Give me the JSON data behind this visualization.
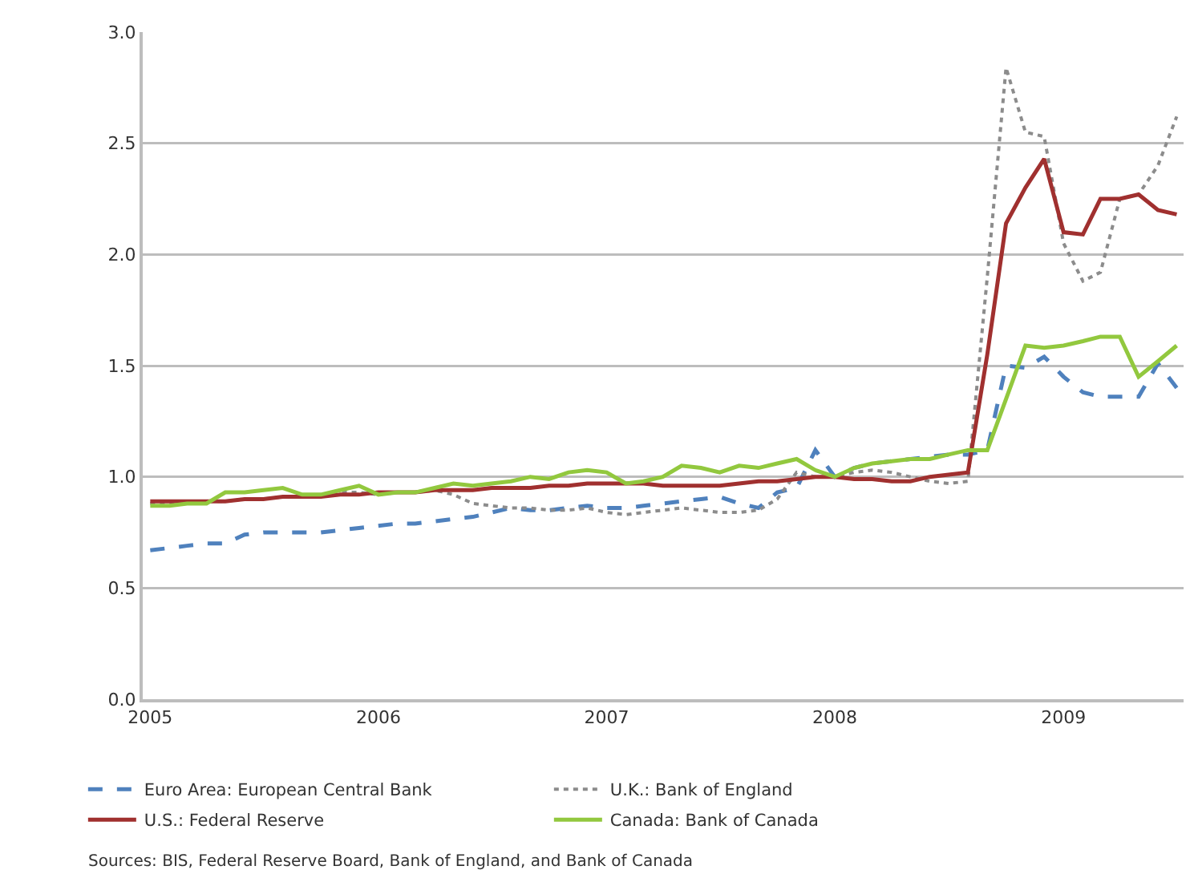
{
  "chart_data": {
    "type": "line",
    "x": [
      "2005-01",
      "2005-02",
      "2005-03",
      "2005-04",
      "2005-05",
      "2005-06",
      "2005-07",
      "2005-08",
      "2005-09",
      "2005-10",
      "2005-11",
      "2005-12",
      "2006-01",
      "2006-02",
      "2006-03",
      "2006-04",
      "2006-05",
      "2006-06",
      "2006-07",
      "2006-08",
      "2006-09",
      "2006-10",
      "2006-11",
      "2006-12",
      "2007-01",
      "2007-02",
      "2007-03",
      "2007-04",
      "2007-05",
      "2007-06",
      "2007-07",
      "2007-08",
      "2007-09",
      "2007-10",
      "2007-11",
      "2007-12",
      "2008-01",
      "2008-02",
      "2008-03",
      "2008-04",
      "2008-05",
      "2008-06",
      "2008-07",
      "2008-08",
      "2008-09",
      "2008-10",
      "2008-11",
      "2008-12",
      "2009-01",
      "2009-02",
      "2009-03",
      "2009-04",
      "2009-05",
      "2009-06",
      "2009-07"
    ],
    "series": [
      {
        "name": "Euro Area: European Central Bank",
        "color": "#4f81bd",
        "line_style": "dashed",
        "values": [
          0.67,
          0.68,
          0.69,
          0.7,
          0.7,
          0.74,
          0.75,
          0.75,
          0.75,
          0.75,
          0.76,
          0.77,
          0.78,
          0.79,
          0.79,
          0.8,
          0.81,
          0.82,
          0.84,
          0.86,
          0.85,
          0.85,
          0.86,
          0.87,
          0.86,
          0.86,
          0.87,
          0.88,
          0.89,
          0.9,
          0.91,
          0.88,
          0.86,
          0.93,
          0.95,
          1.12,
          1.0,
          1.04,
          1.06,
          1.07,
          1.08,
          1.09,
          1.1,
          1.1,
          1.12,
          1.5,
          1.49,
          1.54,
          1.45,
          1.38,
          1.36,
          1.36,
          1.36,
          1.51,
          1.4
        ]
      },
      {
        "name": "U.K.: Bank of England",
        "color": "#8c8c8c",
        "line_style": "dotted",
        "values": [
          0.88,
          0.88,
          0.88,
          0.89,
          0.89,
          0.9,
          0.9,
          0.91,
          0.91,
          0.92,
          0.93,
          0.93,
          0.92,
          0.93,
          0.93,
          0.94,
          0.92,
          0.88,
          0.87,
          0.86,
          0.86,
          0.85,
          0.85,
          0.86,
          0.84,
          0.83,
          0.84,
          0.85,
          0.86,
          0.85,
          0.84,
          0.84,
          0.85,
          0.9,
          1.02,
          1.0,
          1.0,
          1.02,
          1.03,
          1.02,
          1.0,
          0.98,
          0.97,
          0.98,
          1.9,
          2.84,
          2.55,
          2.53,
          2.05,
          1.88,
          1.92,
          2.25,
          2.27,
          2.4,
          2.62
        ]
      },
      {
        "name": "U.S.: Federal Reserve",
        "color": "#a0302f",
        "line_style": "solid",
        "values": [
          0.89,
          0.89,
          0.89,
          0.89,
          0.89,
          0.9,
          0.9,
          0.91,
          0.91,
          0.91,
          0.92,
          0.92,
          0.93,
          0.93,
          0.93,
          0.94,
          0.94,
          0.94,
          0.95,
          0.95,
          0.95,
          0.96,
          0.96,
          0.97,
          0.97,
          0.97,
          0.97,
          0.96,
          0.96,
          0.96,
          0.96,
          0.97,
          0.98,
          0.98,
          0.99,
          1.0,
          1.0,
          0.99,
          0.99,
          0.98,
          0.98,
          1.0,
          1.01,
          1.02,
          1.55,
          2.14,
          2.3,
          2.43,
          2.1,
          2.09,
          2.25,
          2.25,
          2.27,
          2.2,
          2.18
        ]
      },
      {
        "name": "Canada: Bank of Canada",
        "color": "#92c83e",
        "line_style": "solid",
        "values": [
          0.87,
          0.87,
          0.88,
          0.88,
          0.93,
          0.93,
          0.94,
          0.95,
          0.92,
          0.92,
          0.94,
          0.96,
          0.92,
          0.93,
          0.93,
          0.95,
          0.97,
          0.96,
          0.97,
          0.98,
          1.0,
          0.99,
          1.02,
          1.03,
          1.02,
          0.97,
          0.98,
          1.0,
          1.05,
          1.04,
          1.02,
          1.05,
          1.04,
          1.06,
          1.08,
          1.03,
          1.0,
          1.04,
          1.06,
          1.07,
          1.08,
          1.08,
          1.1,
          1.12,
          1.12,
          1.35,
          1.59,
          1.58,
          1.59,
          1.61,
          1.63,
          1.63,
          1.45,
          1.52,
          1.59
        ]
      }
    ],
    "xlim": [
      "2004-12-20",
      "2009-07-12"
    ],
    "xticks": [
      "2005",
      "2006",
      "2007",
      "2008",
      "2009"
    ],
    "ylim": [
      0,
      3
    ],
    "yticks": [
      {
        "value": 0,
        "label": "0.0"
      },
      {
        "value": 0.5,
        "label": "0.5"
      },
      {
        "value": 1,
        "label": "1.0"
      },
      {
        "value": 1.5,
        "label": "1.5"
      },
      {
        "value": 2,
        "label": "2.0"
      },
      {
        "value": 2.5,
        "label": "2.5"
      },
      {
        "value": 3,
        "label": "3.0"
      }
    ],
    "grid": "y",
    "legend": "bottom",
    "marker": "none",
    "annotations": [
      "Sources: BIS, Federal Reserve Board, Bank of England, and Bank of Canada"
    ]
  }
}
